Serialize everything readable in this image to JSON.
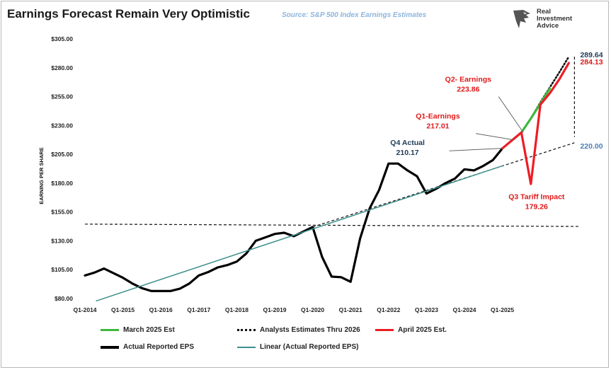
{
  "header": {
    "title": "Earnings Forecast Remain Very Optimistic",
    "source": "Source: S&P 500 Index Earnings Estimates",
    "logo_lines": [
      "Real",
      "Investment",
      "Advice"
    ]
  },
  "chart_data": {
    "type": "line",
    "ylabel": "EARNING PER SHARE",
    "ylim": [
      80,
      305
    ],
    "y_ticks": [
      "$80.00",
      "$105.00",
      "$130.00",
      "$155.00",
      "$180.00",
      "$205.00",
      "$230.00",
      "$255.00",
      "$280.00",
      "$305.00"
    ],
    "x_ticks": [
      "Q1-2014",
      "Q1-2015",
      "Q1-2016",
      "Q1-2017",
      "Q1-2018",
      "Q1-2019",
      "Q1-2020",
      "Q1-2021",
      "Q1-2022",
      "Q1-2023",
      "Q1-2024",
      "Q1-2025"
    ],
    "legend_position": "bottom",
    "series": [
      {
        "name": "Actual Reported EPS",
        "color": "#000000",
        "points": [
          [
            2014.0,
            100
          ],
          [
            2014.25,
            102.5
          ],
          [
            2014.5,
            106
          ],
          [
            2014.75,
            102
          ],
          [
            2015.0,
            98
          ],
          [
            2015.25,
            93
          ],
          [
            2015.5,
            89
          ],
          [
            2015.75,
            86.5
          ],
          [
            2016.0,
            86.5
          ],
          [
            2016.25,
            86.5
          ],
          [
            2016.5,
            88.5
          ],
          [
            2016.75,
            93
          ],
          [
            2017.0,
            100
          ],
          [
            2017.25,
            103
          ],
          [
            2017.5,
            107
          ],
          [
            2017.75,
            109
          ],
          [
            2018.0,
            112
          ],
          [
            2018.25,
            119
          ],
          [
            2018.5,
            130
          ],
          [
            2018.75,
            133
          ],
          [
            2019.0,
            136
          ],
          [
            2019.25,
            137
          ],
          [
            2019.5,
            134
          ],
          [
            2019.75,
            138
          ],
          [
            2020.0,
            142
          ],
          [
            2020.25,
            116
          ],
          [
            2020.5,
            99
          ],
          [
            2020.75,
            98.5
          ],
          [
            2021.0,
            94.5
          ],
          [
            2021.25,
            132
          ],
          [
            2021.5,
            158
          ],
          [
            2021.75,
            174
          ],
          [
            2022.0,
            197
          ],
          [
            2022.25,
            197
          ],
          [
            2022.5,
            191
          ],
          [
            2022.75,
            186
          ],
          [
            2023.0,
            171
          ],
          [
            2023.25,
            175
          ],
          [
            2023.5,
            180
          ],
          [
            2023.75,
            184
          ],
          [
            2024.0,
            192
          ],
          [
            2024.25,
            191
          ],
          [
            2024.5,
            195
          ],
          [
            2024.75,
            200
          ],
          [
            2025.0,
            210.17
          ]
        ]
      },
      {
        "name": "Linear (Actual Reported EPS)",
        "color": "#3f8f8f",
        "points": [
          [
            2014.3,
            78
          ],
          [
            2025.0,
            195
          ]
        ]
      },
      {
        "name": "Analysts Estimates Thru 2026",
        "color": "#111111",
        "points": [
          [
            2025.0,
            210.17
          ],
          [
            2025.25,
            217.01
          ],
          [
            2025.5,
            223.86
          ],
          [
            2025.75,
            236
          ],
          [
            2026.0,
            250
          ],
          [
            2026.25,
            263
          ],
          [
            2026.5,
            276
          ],
          [
            2026.75,
            289.64
          ]
        ]
      },
      {
        "name": "March 2025 Est",
        "color": "#3db83d",
        "points": [
          [
            2025.25,
            217.01
          ],
          [
            2025.5,
            223.86
          ],
          [
            2025.75,
            236
          ],
          [
            2026.0,
            249
          ],
          [
            2026.25,
            262
          ]
        ]
      },
      {
        "name": "April 2025 Est.",
        "color": "#ee1c25",
        "points": [
          [
            2025.0,
            210.17
          ],
          [
            2025.25,
            217.01
          ],
          [
            2025.5,
            223.86
          ],
          [
            2025.75,
            179.26
          ],
          [
            2026.0,
            248
          ],
          [
            2026.25,
            258
          ],
          [
            2026.5,
            270
          ],
          [
            2026.75,
            284.13
          ]
        ]
      }
    ],
    "reference_lines": [
      {
        "id": "flat",
        "color": "#111111",
        "points": [
          [
            2014.0,
            144.5
          ],
          [
            2027.0,
            142.5
          ]
        ]
      },
      {
        "id": "trend",
        "color": "#111111",
        "points": [
          [
            2020.0,
            142
          ],
          [
            2026.9,
            215
          ]
        ]
      },
      {
        "id": "vertical",
        "color": "#111111",
        "points": [
          [
            2026.9,
            289.64
          ],
          [
            2026.9,
            220
          ]
        ]
      }
    ],
    "annotations": [
      {
        "id": "q4-actual",
        "label": "Q4 Actual",
        "value": "210.17",
        "color": "#1f3b57",
        "text_x": 2022.5,
        "text_y": 213,
        "pointer": [
          [
            2023.6,
            208
          ],
          [
            2025.0,
            210.17
          ]
        ]
      },
      {
        "id": "q1-earnings",
        "label": "Q1-Earnings",
        "value": "217.01",
        "color": "#e01818",
        "text_x": 2023.3,
        "text_y": 236,
        "pointer": [
          [
            2024.3,
            223
          ],
          [
            2025.3,
            217.5
          ]
        ]
      },
      {
        "id": "q2-earnings",
        "label": "Q2- Earnings",
        "value": "223.86",
        "color": "#e01818",
        "text_x": 2024.1,
        "text_y": 268,
        "pointer": [
          [
            2024.9,
            255
          ],
          [
            2025.55,
            224
          ]
        ]
      },
      {
        "id": "q3-tariff",
        "label": "Q3 Tariff Impact",
        "value": "179.26",
        "color": "#e01818",
        "text_x": 2025.9,
        "text_y": 166,
        "pointer": []
      },
      {
        "id": "end-289",
        "label": "",
        "value": "289.64",
        "color": "#1f3b57",
        "text_x": 2027.05,
        "text_y": 289,
        "pointer": []
      },
      {
        "id": "end-284",
        "label": "",
        "value": "284.13",
        "color": "#e01818",
        "text_x": 2027.05,
        "text_y": 283,
        "pointer": []
      },
      {
        "id": "end-220",
        "label": "",
        "value": "220.00",
        "color": "#4a7fb5",
        "text_x": 2027.05,
        "text_y": 210,
        "pointer": []
      }
    ]
  },
  "legend": [
    {
      "label": "March 2025 Est",
      "style": "solid",
      "color": "#3db83d",
      "width": 3
    },
    {
      "label": "Analysts Estimates Thru 2026",
      "style": "dotted",
      "color": "#111111",
      "width": 2.5
    },
    {
      "label": "April 2025 Est.",
      "style": "solid",
      "color": "#ee1c25",
      "width": 3
    },
    {
      "label": "Actual Reported EPS",
      "style": "solid",
      "color": "#000000",
      "width": 3.5
    },
    {
      "label": "Linear (Actual Reported EPS)",
      "style": "solid",
      "color": "#3f8f8f",
      "width": 1.5
    }
  ]
}
